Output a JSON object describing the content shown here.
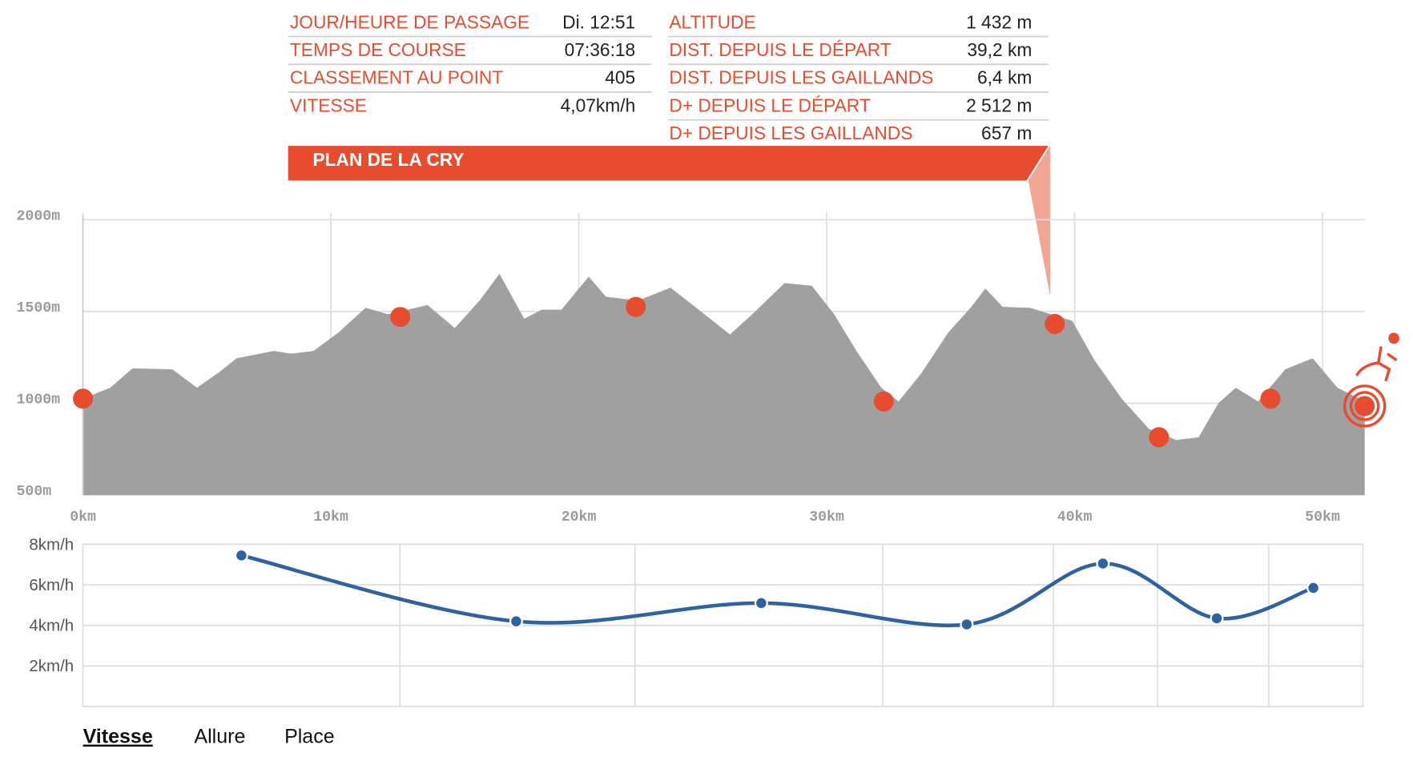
{
  "info": {
    "left": [
      {
        "label": "JOUR/HEURE DE PASSAGE",
        "value": "Di. 12:51"
      },
      {
        "label": "TEMPS DE COURSE",
        "value": "07:36:18"
      },
      {
        "label": "CLASSEMENT AU POINT",
        "value": "405"
      },
      {
        "label": "VITESSE",
        "value": "4,07km/h"
      }
    ],
    "right": [
      {
        "label": "ALTITUDE",
        "value": "1 432 m"
      },
      {
        "label": "DIST. DEPUIS LE DÉPART",
        "value": "39,2 km"
      },
      {
        "label": "DIST. DEPUIS LES GAILLANDS",
        "value": "6,4 km"
      },
      {
        "label": "D+ DEPUIS LE DÉPART",
        "value": "2 512 m"
      },
      {
        "label": "D+ DEPUIS LES GAILLANDS",
        "value": "657 m"
      }
    ],
    "banner": "PLAN DE LA CRY"
  },
  "chart_data": [
    {
      "type": "area",
      "color": "#a0a0a0",
      "x": [
        0,
        1.1,
        2.0,
        3.6,
        4.6,
        5.5,
        6.2,
        7.7,
        8.4,
        9.3,
        10.3,
        11.4,
        12.3,
        13.9,
        15.0,
        16.0,
        16.8,
        17.8,
        18.5,
        19.3,
        20.4,
        21.1,
        22.4,
        23.7,
        24.6,
        26.1,
        27.0,
        28.3,
        29.4,
        30.3,
        31.2,
        32.2,
        32.9,
        33.8,
        34.9,
        35.8,
        36.4,
        37.1,
        38.2,
        39.9,
        40.8,
        41.9,
        43.0,
        44.1,
        45.0,
        45.8,
        46.5,
        47.4,
        48.5,
        49.6,
        50.6,
        51.7
      ],
      "values": [
        1025,
        1085,
        1190,
        1185,
        1085,
        1170,
        1245,
        1285,
        1270,
        1285,
        1385,
        1520,
        1485,
        1535,
        1410,
        1560,
        1705,
        1460,
        1510,
        1510,
        1690,
        1580,
        1560,
        1630,
        1535,
        1375,
        1485,
        1655,
        1640,
        1485,
        1285,
        1085,
        1010,
        1160,
        1385,
        1520,
        1625,
        1525,
        1520,
        1450,
        1235,
        1025,
        860,
        800,
        815,
        1000,
        1085,
        1010,
        1185,
        1245,
        1085,
        1010
      ],
      "markers": {
        "color": "#e84c2f",
        "x": [
          0,
          12.8,
          22.3,
          32.3,
          39.2,
          43.4,
          47.9,
          51.7
        ],
        "values": [
          1025,
          1470,
          1525,
          1010,
          1432,
          815,
          1025,
          985
        ]
      },
      "xlim": [
        0,
        51.7
      ],
      "xticks": [
        {
          "value": 0,
          "label": "0km"
        },
        {
          "value": 10,
          "label": "10km"
        },
        {
          "value": 20,
          "label": "20km"
        },
        {
          "value": 30,
          "label": "30km"
        },
        {
          "value": 40,
          "label": "40km"
        },
        {
          "value": 50,
          "label": "50km"
        }
      ],
      "ylim": [
        500,
        2000
      ],
      "yticks": [
        {
          "value": 500,
          "label": "500m"
        },
        {
          "value": 1000,
          "label": "1000m"
        },
        {
          "value": 1500,
          "label": "1500m"
        },
        {
          "value": 2000,
          "label": "2000m"
        }
      ],
      "grid": true
    },
    {
      "type": "line",
      "color": "#2e62a0",
      "x": [
        6.4,
        17.5,
        27.4,
        35.7,
        41.2,
        45.8,
        49.7
      ],
      "values": [
        7.45,
        4.2,
        5.1,
        4.05,
        7.05,
        4.35,
        5.85
      ],
      "xlim": [
        0,
        51.7
      ],
      "ylim": [
        0,
        8
      ],
      "yticks": [
        {
          "value": 2,
          "label": "2km/h"
        },
        {
          "value": 4,
          "label": "4km/h"
        },
        {
          "value": 6,
          "label": "6km/h"
        },
        {
          "value": 8,
          "label": "8km/h"
        }
      ],
      "grid": true
    }
  ],
  "tabs": [
    "Vitesse",
    "Allure",
    "Place"
  ]
}
